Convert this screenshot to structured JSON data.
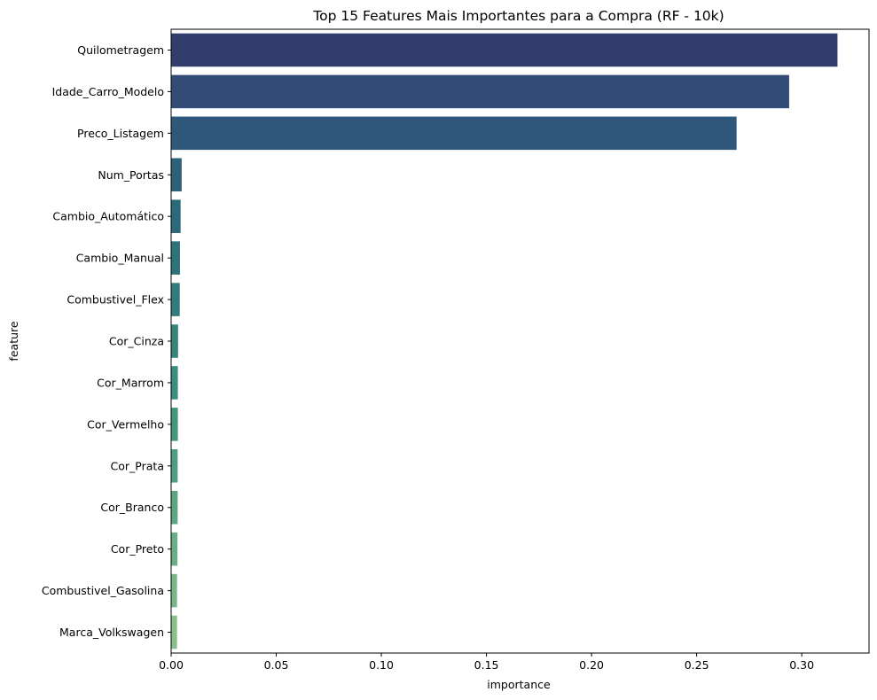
{
  "chart_data": {
    "type": "bar",
    "orientation": "horizontal",
    "title": "Top 15 Features Mais Importantes para a Compra (RF - 10k)",
    "xlabel": "importance",
    "ylabel": "feature",
    "xlim": [
      0,
      0.332
    ],
    "xticks": [
      "0.00",
      "0.05",
      "0.10",
      "0.15",
      "0.20",
      "0.25",
      "0.30"
    ],
    "grid": false,
    "categories": [
      "Quilometragem",
      "Idade_Carro_Modelo",
      "Preco_Listagem",
      "Num_Portas",
      "Cambio_Automático",
      "Cambio_Manual",
      "Combustivel_Flex",
      "Cor_Cinza",
      "Cor_Marrom",
      "Cor_Vermelho",
      "Cor_Prata",
      "Cor_Branco",
      "Cor_Preto",
      "Combustivel_Gasolina",
      "Marca_Volkswagen"
    ],
    "values": [
      0.317,
      0.294,
      0.269,
      0.005,
      0.0045,
      0.0042,
      0.0041,
      0.0033,
      0.0032,
      0.0032,
      0.0031,
      0.0031,
      0.003,
      0.0028,
      0.0028
    ],
    "colors": [
      "#323d6e",
      "#324b77",
      "#2f577a",
      "#2d6179",
      "#2c6a79",
      "#2d7379",
      "#317c7b",
      "#36857c",
      "#3d8d7e",
      "#45967f",
      "#509e81",
      "#5ca682",
      "#6aae85",
      "#78b688",
      "#89be8d"
    ]
  }
}
